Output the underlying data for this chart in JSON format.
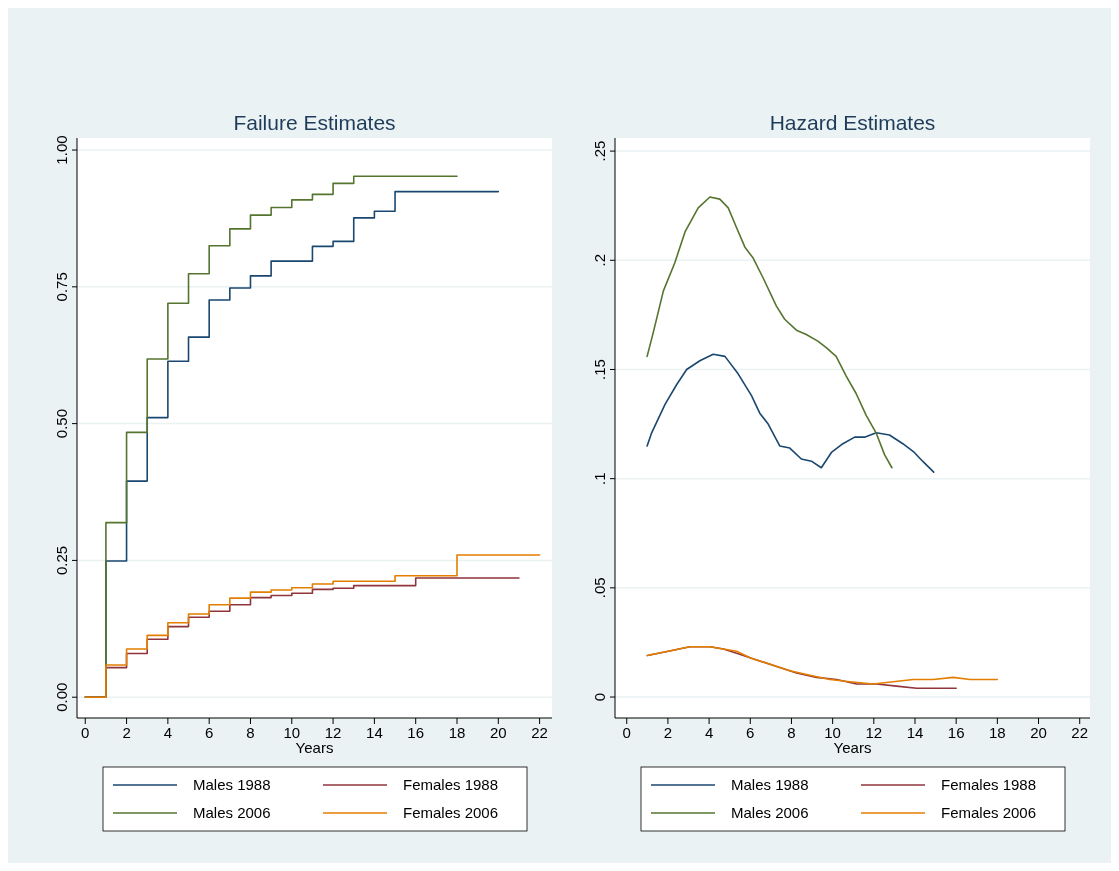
{
  "chart_data": [
    {
      "type": "step",
      "title": "Failure Estimates",
      "xlabel": "Years",
      "xlim": [
        -0.4,
        22.6
      ],
      "xticks": [
        0,
        2,
        4,
        6,
        8,
        10,
        12,
        14,
        16,
        18,
        20,
        22
      ],
      "ylim": [
        -0.038,
        1.022
      ],
      "yticks": [
        {
          "value": 0,
          "label": "0.00"
        },
        {
          "value": 0.25,
          "label": "0.25"
        },
        {
          "value": 0.5,
          "label": "0.50"
        },
        {
          "value": 0.75,
          "label": "0.75"
        },
        {
          "value": 1,
          "label": "1.00"
        }
      ],
      "grid": "y",
      "legend": "bottom",
      "series": [
        {
          "name": "Males 1988",
          "color": "#1a476f",
          "x": [
            0,
            1,
            2,
            3,
            4,
            5,
            6,
            7,
            8,
            9,
            11,
            12,
            13,
            14,
            15,
            20
          ],
          "values": [
            0,
            0.249,
            0.395,
            0.511,
            0.614,
            0.658,
            0.726,
            0.748,
            0.77,
            0.797,
            0.824,
            0.833,
            0.876,
            0.888,
            0.924,
            0.924
          ]
        },
        {
          "name": "Females 1988",
          "color": "#90353b",
          "x": [
            0,
            1,
            2,
            3,
            4,
            5,
            6,
            7,
            8,
            9,
            10,
            11,
            12,
            13,
            16,
            21
          ],
          "values": [
            0,
            0.054,
            0.08,
            0.106,
            0.129,
            0.146,
            0.157,
            0.169,
            0.182,
            0.186,
            0.19,
            0.197,
            0.199,
            0.204,
            0.218,
            0.218
          ]
        },
        {
          "name": "Males 2006",
          "color": "#55752f",
          "x": [
            0,
            1,
            2,
            3,
            4,
            5,
            6,
            7,
            8,
            9,
            10,
            11,
            12,
            13,
            18
          ],
          "values": [
            0,
            0.319,
            0.484,
            0.618,
            0.72,
            0.774,
            0.825,
            0.856,
            0.881,
            0.895,
            0.909,
            0.919,
            0.939,
            0.952,
            0.952
          ]
        },
        {
          "name": "Females 2006",
          "color": "#e37e00",
          "x": [
            0,
            1,
            2,
            3,
            4,
            5,
            6,
            7,
            8,
            9,
            10,
            11,
            12,
            15,
            18,
            22
          ],
          "values": [
            0,
            0.059,
            0.088,
            0.113,
            0.136,
            0.152,
            0.169,
            0.181,
            0.192,
            0.196,
            0.2,
            0.207,
            0.212,
            0.222,
            0.26,
            0.26
          ]
        }
      ]
    },
    {
      "type": "line",
      "title": "Hazard Estimates",
      "xlabel": "Years",
      "xlim": [
        -0.57,
        22.5
      ],
      "xticks": [
        0,
        2,
        4,
        6,
        8,
        10,
        12,
        14,
        16,
        18,
        20,
        22
      ],
      "ylim": [
        -0.0096,
        0.256
      ],
      "yticks": [
        {
          "value": 0,
          "label": "0"
        },
        {
          "value": 0.05,
          "label": ".05"
        },
        {
          "value": 0.1,
          "label": ".1"
        },
        {
          "value": 0.15,
          "label": ".15"
        },
        {
          "value": 0.2,
          "label": ".2"
        },
        {
          "value": 0.25,
          "label": ".25"
        }
      ],
      "grid": "y",
      "legend": "bottom",
      "series": [
        {
          "name": "Males 1988",
          "color": "#1a476f",
          "x": [
            0.99,
            1.21,
            1.86,
            2.42,
            2.91,
            3.55,
            4.2,
            4.77,
            5.41,
            6.06,
            6.46,
            6.87,
            7.43,
            7.92,
            8.48,
            8.97,
            9.45,
            9.94,
            10.5,
            11.07,
            11.55,
            12.12,
            12.76,
            13.41,
            13.97,
            14.37,
            14.91
          ],
          "values": [
            0.115,
            0.121,
            0.134,
            0.143,
            0.15,
            0.154,
            0.157,
            0.156,
            0.148,
            0.138,
            0.13,
            0.125,
            0.115,
            0.114,
            0.109,
            0.108,
            0.105,
            0.112,
            0.116,
            0.119,
            0.119,
            0.121,
            0.12,
            0.116,
            0.112,
            0.108,
            0.103
          ]
        },
        {
          "name": "Females 1988",
          "color": "#90353b",
          "x": [
            1,
            2.02,
            3.07,
            4.05,
            4.69,
            5.34,
            6.31,
            7.28,
            8.25,
            9.22,
            10.19,
            11.17,
            12.14,
            13.1,
            14.08,
            15.05,
            16
          ],
          "values": [
            0.019,
            0.021,
            0.023,
            0.023,
            0.022,
            0.02,
            0.017,
            0.014,
            0.011,
            0.009,
            0.008,
            0.006,
            0.006,
            0.005,
            0.004,
            0.004,
            0.004
          ]
        },
        {
          "name": "Males 2006",
          "color": "#55752f",
          "x": [
            0.99,
            1.29,
            1.78,
            2.34,
            2.83,
            3.47,
            4.04,
            4.52,
            4.93,
            5.33,
            5.74,
            6.14,
            6.62,
            7.27,
            7.67,
            8.24,
            8.72,
            9.28,
            9.69,
            10.17,
            10.66,
            11.14,
            11.63,
            12.11,
            12.52,
            12.88
          ],
          "values": [
            0.156,
            0.167,
            0.186,
            0.199,
            0.213,
            0.224,
            0.229,
            0.228,
            0.224,
            0.215,
            0.206,
            0.201,
            0.192,
            0.179,
            0.173,
            0.168,
            0.166,
            0.163,
            0.16,
            0.156,
            0.147,
            0.139,
            0.129,
            0.121,
            0.111,
            0.105
          ]
        },
        {
          "name": "Females 2006",
          "color": "#e37e00",
          "x": [
            1,
            2.02,
            3.07,
            4.05,
            4.69,
            5.34,
            5.99,
            6.96,
            7.93,
            8.9,
            9.87,
            10.84,
            11.97,
            12.94,
            13.92,
            14.89,
            15.86,
            16.67,
            18
          ],
          "values": [
            0.019,
            0.021,
            0.023,
            0.023,
            0.022,
            0.021,
            0.018,
            0.015,
            0.012,
            0.01,
            0.008,
            0.007,
            0.006,
            0.007,
            0.008,
            0.008,
            0.009,
            0.008,
            0.008
          ]
        }
      ]
    }
  ]
}
